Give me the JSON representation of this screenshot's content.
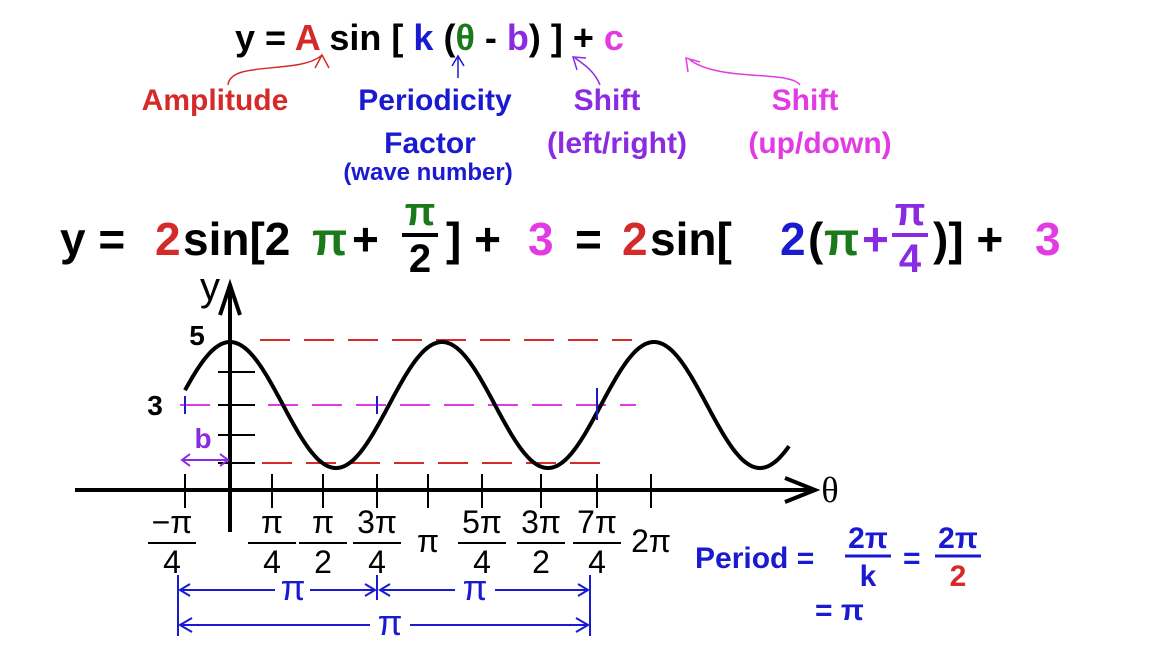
{
  "general_form": {
    "parts": [
      "y = ",
      "A",
      " sin [ ",
      "k",
      " (",
      "θ",
      " - ",
      "b",
      ") ] + ",
      "c"
    ]
  },
  "labels": {
    "amplitude": "Amplitude",
    "periodicity": "Periodicity",
    "factor": "Factor",
    "wave_number": "(wave number)",
    "shift_lr": "Shift",
    "left_right": "(left/right)",
    "shift_ud": "Shift",
    "up_down": "(up/down)"
  },
  "example": {
    "parts": [
      "y = ",
      "2",
      "sin[2",
      "π",
      "+",
      "] +",
      "3",
      "=",
      "2",
      "sin[",
      "2",
      "(",
      "π",
      "+",
      ")] +",
      "3"
    ],
    "fraction1": {
      "num": "π",
      "den": "2"
    },
    "fraction2": {
      "num": "π",
      "den": "4"
    }
  },
  "graph": {
    "y_axis": "y",
    "x_axis": "θ",
    "y_labels": [
      "5",
      "3"
    ],
    "b_label": "b",
    "ticks": [
      {
        "num": "−π",
        "den": "4"
      },
      {
        "num": "π",
        "den": "4"
      },
      {
        "num": "π",
        "den": "2"
      },
      {
        "num": "3π",
        "den": "4"
      },
      {
        "text": "π"
      },
      {
        "num": "5π",
        "den": "4"
      },
      {
        "num": "3π",
        "den": "2"
      },
      {
        "num": "7π",
        "den": "4"
      },
      {
        "text": "2π"
      }
    ],
    "brackets": [
      "π",
      "π",
      "π"
    ]
  },
  "period": {
    "label": "Period =",
    "num1": "2π",
    "den1": "k",
    "eq": "=",
    "num2": "2π",
    "den2": "2",
    "result": "= π"
  }
}
